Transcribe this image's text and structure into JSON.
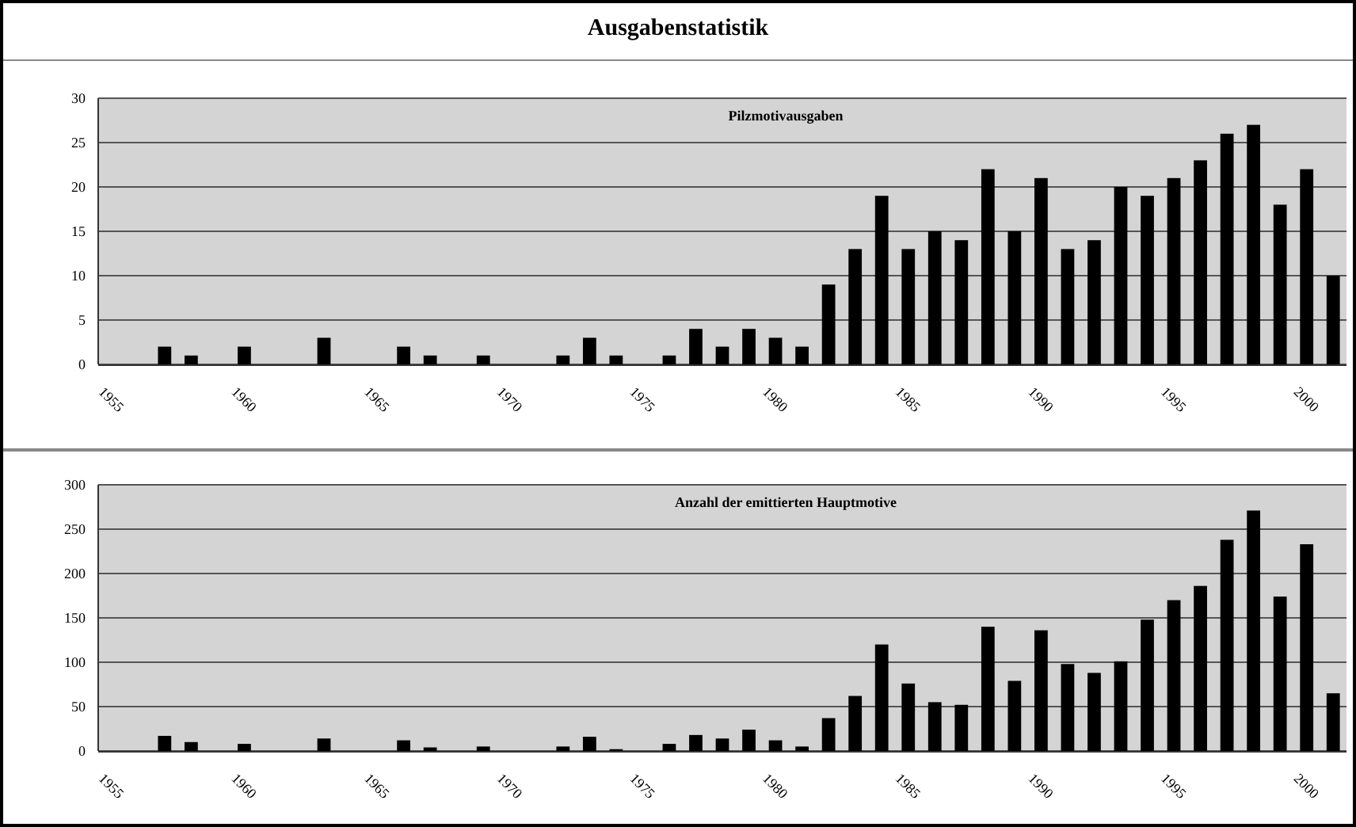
{
  "chart_data": [
    {
      "type": "bar",
      "title": "Ausgabenstatistik",
      "subtitle": "Pilzmotivausgaben",
      "categories": [
        "1955",
        null,
        null,
        null,
        null,
        "1960",
        null,
        null,
        null,
        null,
        "1965",
        null,
        null,
        null,
        null,
        "1970",
        null,
        null,
        null,
        null,
        "1975",
        null,
        null,
        null,
        null,
        "1980",
        null,
        null,
        null,
        null,
        "1985",
        null,
        null,
        null,
        null,
        "1990",
        null,
        null,
        null,
        null,
        "1995",
        null,
        null,
        null,
        null,
        "2000",
        null
      ],
      "values": [
        0,
        0,
        2,
        1,
        0,
        2,
        0,
        0,
        3,
        0,
        0,
        2,
        1,
        0,
        1,
        0,
        0,
        1,
        3,
        1,
        0,
        1,
        4,
        2,
        4,
        3,
        2,
        9,
        13,
        19,
        13,
        15,
        14,
        22,
        15,
        21,
        13,
        14,
        20,
        19,
        21,
        23,
        26,
        27,
        18,
        22,
        10
      ],
      "color": "#000000",
      "ylim": [
        0,
        30
      ],
      "yticks": [
        0,
        5,
        10,
        15,
        20,
        25,
        30
      ],
      "grid": "y"
    },
    {
      "type": "bar",
      "title": "Anzahl der emittierten Hauptmotive",
      "categories": [
        "1955",
        null,
        null,
        null,
        null,
        "1960",
        null,
        null,
        null,
        null,
        "1965",
        null,
        null,
        null,
        null,
        "1970",
        null,
        null,
        null,
        null,
        "1975",
        null,
        null,
        null,
        null,
        "1980",
        null,
        null,
        null,
        null,
        "1985",
        null,
        null,
        null,
        null,
        "1990",
        null,
        null,
        null,
        null,
        "1995",
        null,
        null,
        null,
        null,
        "2000",
        null
      ],
      "values": [
        0,
        0,
        17,
        10,
        0,
        8,
        0,
        0,
        14,
        0,
        0,
        12,
        4,
        0,
        5,
        0,
        0,
        5,
        16,
        2,
        0,
        8,
        18,
        14,
        24,
        12,
        5,
        37,
        62,
        120,
        76,
        55,
        52,
        140,
        79,
        136,
        98,
        88,
        101,
        148,
        170,
        186,
        238,
        271,
        174,
        233,
        65
      ],
      "color": "#000000",
      "ylim": [
        0,
        300
      ],
      "yticks": [
        0,
        50,
        100,
        150,
        200,
        250,
        300
      ],
      "grid": "y"
    }
  ]
}
